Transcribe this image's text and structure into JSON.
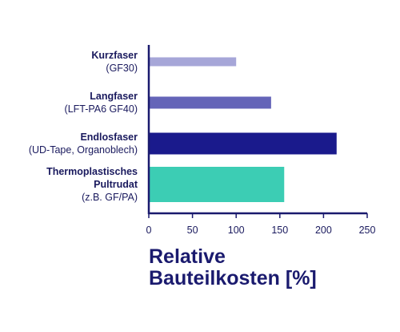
{
  "colors": {
    "text": "#1a1a5e",
    "axis": "#1a1a6e"
  },
  "chart_data": {
    "type": "bar",
    "orientation": "horizontal",
    "categories": [
      {
        "name_lines": [
          "Kurzfaser"
        ],
        "sub": "(GF30)"
      },
      {
        "name_lines": [
          "Langfaser"
        ],
        "sub": "(LFT-PA6 GF40)"
      },
      {
        "name_lines": [
          "Endlosfaser"
        ],
        "sub": "(UD-Tape, Organoblech)"
      },
      {
        "name_lines": [
          "Thermoplastisches",
          "Pultrudat"
        ],
        "sub": "(z.B. GF/PA)"
      }
    ],
    "values": [
      100,
      140,
      215,
      155
    ],
    "bar_colors": [
      "#a6a6d8",
      "#6464b8",
      "#1a1a8c",
      "#3ccdb4"
    ],
    "xlim": [
      0,
      250
    ],
    "xticks": [
      0,
      50,
      100,
      150,
      200,
      250
    ],
    "xlabel_lines": [
      "Relative",
      "Bauteilkosten [%]"
    ],
    "grid": false
  }
}
